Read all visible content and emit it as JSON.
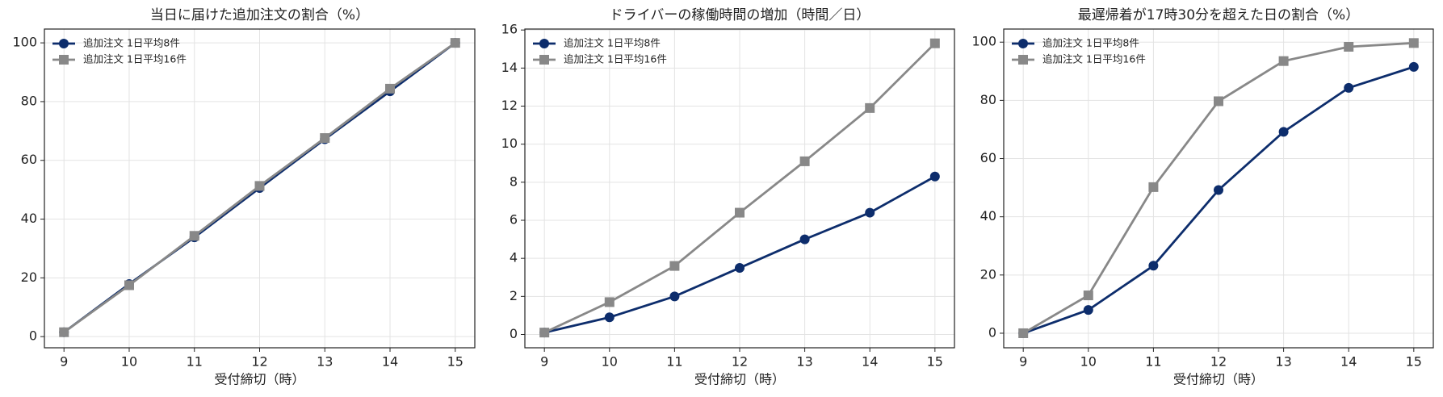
{
  "chart_data": [
    {
      "type": "line",
      "title": "当日に届けた追加注文の割合（%）",
      "x_label": "受付締切（時）",
      "x": [
        9,
        10,
        11,
        12,
        13,
        14,
        15
      ],
      "xlim": [
        8.7,
        15.3
      ],
      "xticks": [
        9,
        10,
        11,
        12,
        13,
        14,
        15
      ],
      "ylim": [
        -3.8,
        104.7
      ],
      "yticks": [
        0,
        20,
        40,
        60,
        80,
        100
      ],
      "grid": true,
      "legend": "upper left",
      "series": [
        {
          "name": "追加注文 1日平均8件",
          "color": "#0d2d6c",
          "marker": "circle",
          "values": [
            1.5,
            17.9,
            33.8,
            50.6,
            67.2,
            83.5,
            100
          ]
        },
        {
          "name": "追加注文 1日平均16件",
          "color": "#888888",
          "marker": "square",
          "values": [
            1.5,
            17.5,
            34.3,
            51.3,
            67.6,
            84.4,
            100
          ]
        }
      ]
    },
    {
      "type": "line",
      "title": "ドライバーの稼働時間の増加（時間／日）",
      "x_label": "受付締切（時）",
      "x": [
        9,
        10,
        11,
        12,
        13,
        14,
        15
      ],
      "xlim": [
        8.7,
        15.3
      ],
      "xticks": [
        9,
        10,
        11,
        12,
        13,
        14,
        15
      ],
      "ylim": [
        -0.7,
        16.05
      ],
      "yticks": [
        0,
        2,
        4,
        6,
        8,
        10,
        12,
        14,
        16
      ],
      "grid": true,
      "legend": "upper left",
      "series": [
        {
          "name": "追加注文 1日平均8件",
          "color": "#0d2d6c",
          "marker": "circle",
          "values": [
            0.1,
            0.9,
            2.0,
            3.5,
            5.0,
            6.4,
            8.3
          ]
        },
        {
          "name": "追加注文 1日平均16件",
          "color": "#888888",
          "marker": "square",
          "values": [
            0.1,
            1.7,
            3.6,
            6.4,
            9.1,
            11.9,
            15.3
          ]
        }
      ]
    },
    {
      "type": "line",
      "title": "最遅帰着が17時30分を超えた日の割合（%）",
      "x_label": "受付締切（時）",
      "x": [
        9,
        10,
        11,
        12,
        13,
        14,
        15
      ],
      "xlim": [
        8.7,
        15.3
      ],
      "xticks": [
        9,
        10,
        11,
        12,
        13,
        14,
        15
      ],
      "ylim": [
        -5,
        104.5
      ],
      "yticks": [
        0,
        20,
        40,
        60,
        80,
        100
      ],
      "grid": true,
      "legend": "upper left",
      "series": [
        {
          "name": "追加注文 1日平均8件",
          "color": "#0d2d6c",
          "marker": "circle",
          "values": [
            0,
            8,
            23.2,
            49.2,
            69.2,
            84.3,
            91.5
          ]
        },
        {
          "name": "追加注文 1日平均16件",
          "color": "#888888",
          "marker": "square",
          "values": [
            0,
            13,
            50.2,
            79.7,
            93.5,
            98.4,
            99.7
          ]
        }
      ]
    }
  ]
}
